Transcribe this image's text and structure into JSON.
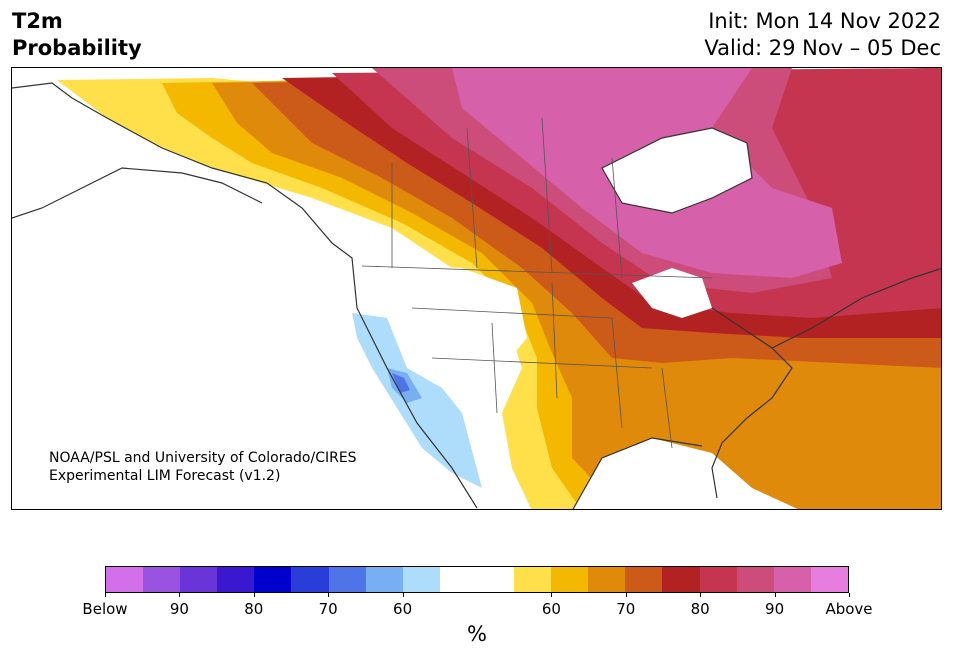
{
  "title": {
    "line1": "T2m",
    "line2": "Probability"
  },
  "dates": {
    "init": "Init: Mon 14 Nov 2022",
    "valid": "Valid: 29 Nov – 05 Dec"
  },
  "credit": {
    "line1": "NOAA/PSL and University of Colorado/CIRES",
    "line2": "Experimental LIM Forecast (v1.2)"
  },
  "colorbar": {
    "colors": [
      "#d36fe8",
      "#9a52e0",
      "#6a35d8",
      "#3a18d0",
      "#0000cc",
      "#2a3dd8",
      "#4f74e8",
      "#78aff3",
      "#aedcfb",
      "#ffffff",
      "#ffffff",
      "#ffe04a",
      "#f4b800",
      "#e08a0c",
      "#cc5a18",
      "#b22222",
      "#c53550",
      "#cc4c7a",
      "#d660aa",
      "#e87de0"
    ],
    "ticks": [
      "Below",
      "90",
      "80",
      "70",
      "60",
      "60",
      "70",
      "80",
      "90",
      "Above"
    ],
    "label": "%"
  },
  "map_legend_colors": {
    "below_60": "#aedcfb",
    "below_70": "#78aff3",
    "below_80": "#4f74e8",
    "above_60": "#ffe04a",
    "above_65": "#f4b800",
    "above_70": "#e08a0c",
    "above_75": "#cc5a18",
    "above_80": "#b22222",
    "above_85": "#c53550",
    "above_90": "#cc4c7a",
    "above_95": "#d660aa"
  }
}
